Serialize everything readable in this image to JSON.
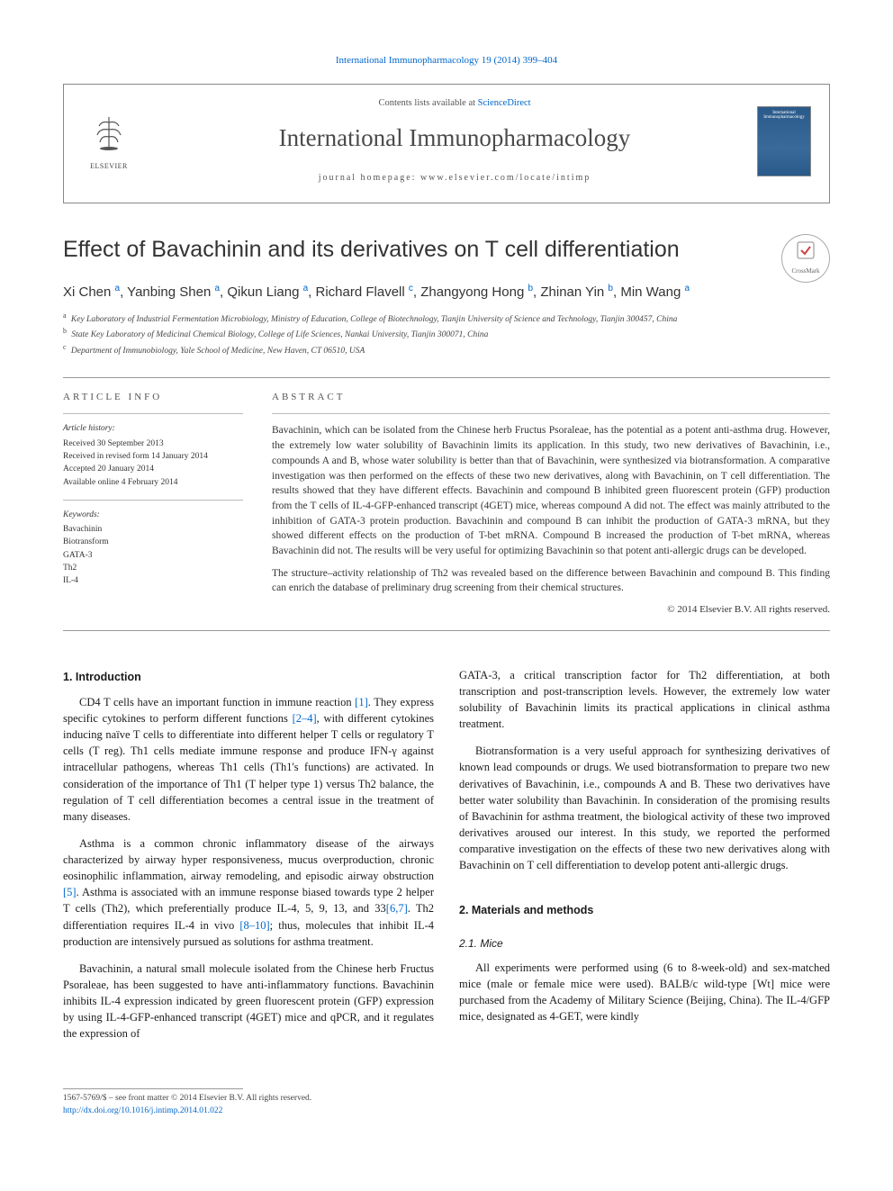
{
  "top_link": "International Immunopharmacology 19 (2014) 399–404",
  "header": {
    "contents_prefix": "Contents lists available at ",
    "contents_link": "ScienceDirect",
    "journal": "International Immunopharmacology",
    "homepage_label": "journal homepage: ",
    "homepage_url": "www.elsevier.com/locate/intimp",
    "publisher": "ELSEVIER",
    "cover_title": "International Immunopharmacology"
  },
  "title": "Effect of Bavachinin and its derivatives on T cell differentiation",
  "crossmark": "CrossMark",
  "authors_html": "Xi Chen <sup>a</sup>, Yanbing Shen <sup>a</sup>, Qikun Liang <sup>a</sup>, Richard Flavell <sup>c</sup>, Zhangyong Hong <sup>b</sup>, Zhinan Yin <sup>b</sup>, Min Wang <sup>a</sup>",
  "affiliations": [
    {
      "sup": "a",
      "text": "Key Laboratory of Industrial Fermentation Microbiology, Ministry of Education, College of Biotechnology, Tianjin University of Science and Technology, Tianjin 300457, China"
    },
    {
      "sup": "b",
      "text": "State Key Laboratory of Medicinal Chemical Biology, College of Life Sciences, Nankai University, Tianjin 300071, China"
    },
    {
      "sup": "c",
      "text": "Department of Immunobiology, Yale School of Medicine, New Haven, CT 06510, USA"
    }
  ],
  "info": {
    "heading": "ARTICLE INFO",
    "history_label": "Article history:",
    "history": [
      "Received 30 September 2013",
      "Received in revised form 14 January 2014",
      "Accepted 20 January 2014",
      "Available online 4 February 2014"
    ],
    "keywords_label": "Keywords:",
    "keywords": [
      "Bavachinin",
      "Biotransform",
      "GATA-3",
      "Th2",
      "IL-4"
    ]
  },
  "abstract": {
    "heading": "ABSTRACT",
    "p1": "Bavachinin, which can be isolated from the Chinese herb Fructus Psoraleae, has the potential as a potent anti-asthma drug. However, the extremely low water solubility of Bavachinin limits its application. In this study, two new derivatives of Bavachinin, i.e., compounds A and B, whose water solubility is better than that of Bavachinin, were synthesized via biotransformation. A comparative investigation was then performed on the effects of these two new derivatives, along with Bavachinin, on T cell differentiation. The results showed that they have different effects. Bavachinin and compound B inhibited green fluorescent protein (GFP) production from the T cells of IL-4-GFP-enhanced transcript (4GET) mice, whereas compound A did not. The effect was mainly attributed to the inhibition of GATA-3 protein production. Bavachinin and compound B can inhibit the production of GATA-3 mRNA, but they showed different effects on the production of T-bet mRNA. Compound B increased the production of T-bet mRNA, whereas Bavachinin did not. The results will be very useful for optimizing Bavachinin so that potent anti-allergic drugs can be developed.",
    "p2": "The structure–activity relationship of Th2 was revealed based on the difference between Bavachinin and compound B. This finding can enrich the database of preliminary drug screening from their chemical structures.",
    "copyright": "© 2014 Elsevier B.V. All rights reserved."
  },
  "body": {
    "intro_heading": "1. Introduction",
    "intro_p1_a": "CD4 T cells have an important function in immune reaction ",
    "intro_p1_ref1": "[1]",
    "intro_p1_b": ". They express specific cytokines to perform different functions ",
    "intro_p1_ref2": "[2–4]",
    "intro_p1_c": ", with different cytokines inducing naïve T cells to differentiate into different helper T cells or regulatory T cells (T reg). Th1 cells mediate immune response and produce IFN-γ against intracellular pathogens, whereas Th1 cells (Th1's functions) are activated. In consideration of the importance of Th1 (T helper type 1) versus Th2 balance, the regulation of T cell differentiation becomes a central issue in the treatment of many diseases.",
    "intro_p2_a": "Asthma is a common chronic inflammatory disease of the airways characterized by airway hyper responsiveness, mucus overproduction, chronic eosinophilic inflammation, airway remodeling, and episodic airway obstruction ",
    "intro_p2_ref1": "[5]",
    "intro_p2_b": ". Asthma is associated with an immune response biased towards type 2 helper T cells (Th2), which preferentially produce IL-4, 5, 9, 13, and 33",
    "intro_p2_ref2": "[6,7]",
    "intro_p2_c": ". Th2 differentiation requires IL-4 in vivo ",
    "intro_p2_ref3": "[8–10]",
    "intro_p2_d": "; thus, molecules that inhibit IL-4 production are intensively pursued as solutions for asthma treatment.",
    "intro_p3": "Bavachinin, a natural small molecule isolated from the Chinese herb Fructus Psoraleae, has been suggested to have anti-inflammatory functions. Bavachinin inhibits IL-4 expression indicated by green fluorescent protein (GFP) expression by using IL-4-GFP-enhanced transcript (4GET) mice and qPCR, and it regulates the expression of",
    "col2_p1": "GATA-3, a critical transcription factor for Th2 differentiation, at both transcription and post-transcription levels. However, the extremely low water solubility of Bavachinin limits its practical applications in clinical asthma treatment.",
    "col2_p2": "Biotransformation is a very useful approach for synthesizing derivatives of known lead compounds or drugs. We used biotransformation to prepare two new derivatives of Bavachinin, i.e., compounds A and B. These two derivatives have better water solubility than Bavachinin. In consideration of the promising results of Bavachinin for asthma treatment, the biological activity of these two improved derivatives aroused our interest. In this study, we reported the performed comparative investigation on the effects of these two new derivatives along with Bavachinin on T cell differentiation to develop potent anti-allergic drugs.",
    "methods_heading": "2. Materials and methods",
    "mice_heading": "2.1. Mice",
    "mice_p": "All experiments were performed using (6 to 8-week-old) and sex-matched mice (male or female mice were used). BALB/c wild-type [Wt] mice were purchased from the Academy of Military Science (Beijing, China). The IL-4/GFP mice, designated as 4-GET, were kindly"
  },
  "footer": {
    "line1": "1567-5769/$ – see front matter © 2014 Elsevier B.V. All rights reserved.",
    "doi": "http://dx.doi.org/10.1016/j.intimp.2014.01.022"
  },
  "colors": {
    "link": "#0066cc",
    "text": "#1a1a1a",
    "muted": "#555",
    "border": "#999"
  }
}
